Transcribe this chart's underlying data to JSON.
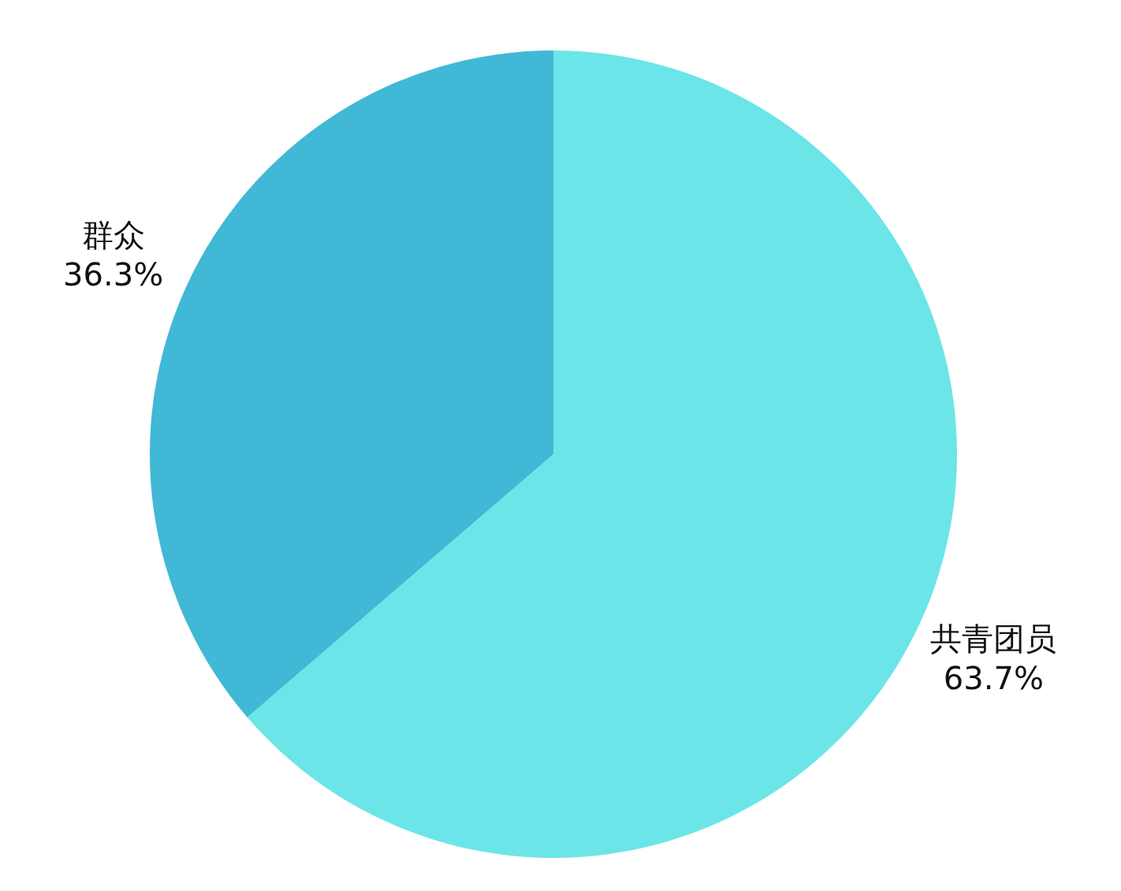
{
  "chart_data": {
    "type": "pie",
    "categories": [
      "共青团员",
      "群众"
    ],
    "values": [
      63.7,
      36.3
    ],
    "colors": [
      "#6ce5e8",
      "#41b8d5"
    ],
    "value_labels": [
      "63.7%",
      "36.3%"
    ],
    "legend": false
  }
}
